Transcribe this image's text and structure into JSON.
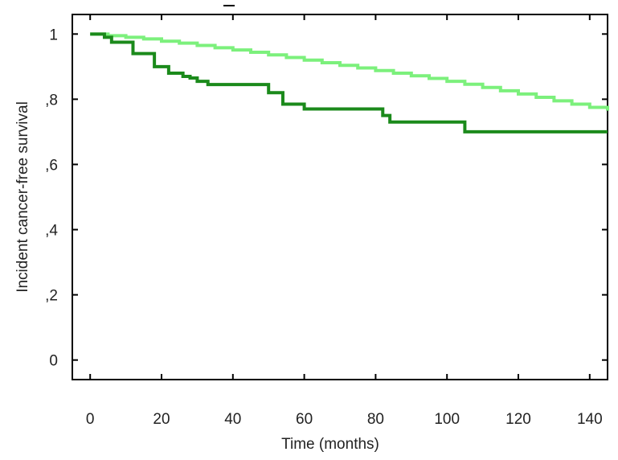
{
  "chart_data": {
    "type": "line",
    "step": true,
    "title": "",
    "xlabel": "Time (months)",
    "ylabel": "Incident cancer-free survival",
    "xlim": [
      -5,
      145
    ],
    "ylim": [
      -0.06,
      1.06
    ],
    "xticks": [
      0,
      20,
      40,
      60,
      80,
      100,
      120,
      140
    ],
    "xtick_labels": [
      "0",
      "20",
      "40",
      "60",
      "80",
      "100",
      "120",
      "140"
    ],
    "yticks": [
      0,
      0.2,
      0.4,
      0.6,
      0.8,
      1.0
    ],
    "ytick_labels": [
      "0",
      ",2",
      ",4",
      ",6",
      ",8",
      "1"
    ],
    "grid": false,
    "legend": "none",
    "series": [
      {
        "color": "#7CF07C",
        "x": [
          0,
          5,
          10,
          15,
          20,
          25,
          30,
          35,
          40,
          45,
          50,
          55,
          60,
          65,
          70,
          75,
          80,
          85,
          90,
          95,
          100,
          105,
          110,
          115,
          120,
          125,
          130,
          135,
          140,
          145
        ],
        "y": [
          1.0,
          0.995,
          0.99,
          0.985,
          0.978,
          0.972,
          0.965,
          0.958,
          0.951,
          0.944,
          0.936,
          0.928,
          0.92,
          0.912,
          0.904,
          0.896,
          0.888,
          0.88,
          0.872,
          0.864,
          0.855,
          0.846,
          0.836,
          0.826,
          0.816,
          0.806,
          0.795,
          0.785,
          0.775,
          0.765
        ]
      },
      {
        "color": "#1B8A1B",
        "x": [
          0,
          4,
          6,
          12,
          18,
          22,
          26,
          28,
          30,
          33,
          50,
          54,
          60,
          82,
          84,
          105,
          145
        ],
        "y": [
          1.0,
          0.99,
          0.975,
          0.94,
          0.9,
          0.88,
          0.87,
          0.865,
          0.855,
          0.845,
          0.82,
          0.785,
          0.77,
          0.75,
          0.73,
          0.7,
          0.7
        ]
      }
    ]
  }
}
